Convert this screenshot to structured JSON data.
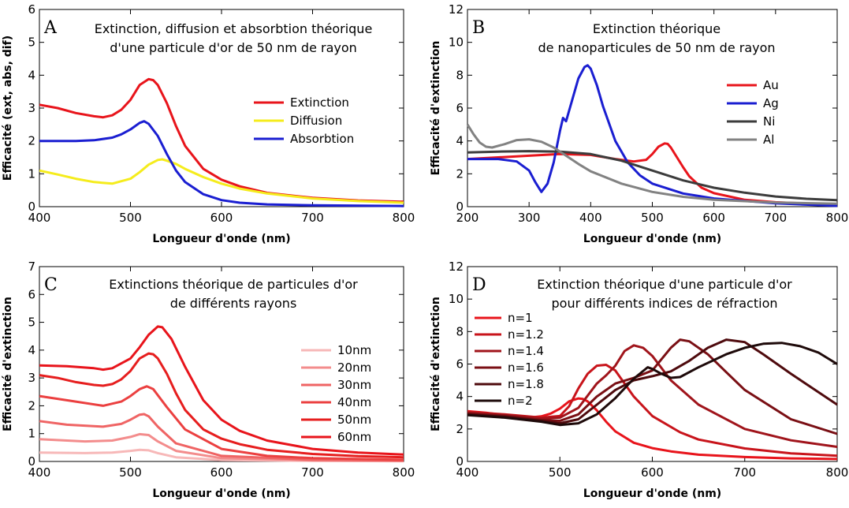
{
  "chart_data": [
    {
      "type": "line",
      "panel": "A",
      "title": [
        "Extinction, diffusion et absorbtion théorique",
        "d'une particule d'or de 50 nm de rayon"
      ],
      "xlabel": "Longueur d'onde (nm)",
      "ylabel": "Efficacité (ext, abs, dif)",
      "xlim": [
        400,
        800
      ],
      "ylim": [
        0,
        6
      ],
      "xticks": [
        400,
        500,
        600,
        700,
        800
      ],
      "yticks": [
        0,
        1,
        2,
        3,
        4,
        5,
        6
      ],
      "legend_position": "right",
      "series": [
        {
          "name": "Extinction",
          "color": "#e8141b",
          "x": [
            400,
            420,
            440,
            460,
            470,
            480,
            490,
            500,
            510,
            520,
            525,
            530,
            540,
            550,
            560,
            580,
            600,
            620,
            650,
            700,
            750,
            800
          ],
          "y": [
            3.1,
            3.0,
            2.85,
            2.75,
            2.72,
            2.78,
            2.95,
            3.25,
            3.7,
            3.88,
            3.85,
            3.7,
            3.15,
            2.45,
            1.85,
            1.15,
            0.82,
            0.62,
            0.42,
            0.27,
            0.19,
            0.15
          ]
        },
        {
          "name": "Diffusion",
          "color": "#f5ec1c",
          "x": [
            400,
            420,
            440,
            460,
            480,
            500,
            510,
            520,
            530,
            535,
            540,
            550,
            560,
            580,
            600,
            620,
            650,
            700,
            750,
            800
          ],
          "y": [
            1.1,
            0.98,
            0.85,
            0.75,
            0.7,
            0.85,
            1.05,
            1.28,
            1.42,
            1.44,
            1.4,
            1.3,
            1.15,
            0.9,
            0.7,
            0.55,
            0.4,
            0.25,
            0.17,
            0.12
          ]
        },
        {
          "name": "Absorbtion",
          "color": "#1a1ed1",
          "x": [
            400,
            420,
            440,
            460,
            480,
            490,
            500,
            510,
            515,
            520,
            530,
            540,
            550,
            560,
            580,
            600,
            620,
            650,
            700,
            800
          ],
          "y": [
            2.0,
            2.0,
            2.0,
            2.02,
            2.1,
            2.2,
            2.35,
            2.55,
            2.6,
            2.52,
            2.15,
            1.6,
            1.1,
            0.75,
            0.38,
            0.2,
            0.12,
            0.07,
            0.04,
            0.02
          ]
        }
      ]
    },
    {
      "type": "line",
      "panel": "B",
      "title": [
        "Extinction théorique",
        "de nanoparticules de 50 nm de rayon"
      ],
      "xlabel": "Longueur d'onde (nm)",
      "ylabel": "Efficacité d'extinction",
      "xlim": [
        200,
        800
      ],
      "ylim": [
        0,
        12
      ],
      "xticks": [
        200,
        300,
        400,
        500,
        600,
        700,
        800
      ],
      "yticks": [
        0,
        2,
        4,
        6,
        8,
        10,
        12
      ],
      "legend_position": "right",
      "series": [
        {
          "name": "Au",
          "color": "#e8141b",
          "x": [
            200,
            250,
            300,
            350,
            400,
            440,
            470,
            490,
            500,
            510,
            520,
            525,
            530,
            540,
            550,
            560,
            580,
            600,
            650,
            700,
            750,
            800
          ],
          "y": [
            2.9,
            3.0,
            3.1,
            3.2,
            3.15,
            2.9,
            2.75,
            2.85,
            3.2,
            3.65,
            3.85,
            3.82,
            3.6,
            3.0,
            2.4,
            1.85,
            1.15,
            0.82,
            0.42,
            0.27,
            0.19,
            0.15
          ]
        },
        {
          "name": "Ag",
          "color": "#1a1ed1",
          "x": [
            200,
            250,
            280,
            300,
            310,
            320,
            330,
            340,
            350,
            355,
            360,
            370,
            380,
            390,
            395,
            400,
            410,
            420,
            440,
            460,
            480,
            500,
            550,
            600,
            700,
            800
          ],
          "y": [
            2.9,
            2.9,
            2.75,
            2.2,
            1.5,
            0.9,
            1.4,
            2.7,
            4.6,
            5.4,
            5.2,
            6.5,
            7.8,
            8.5,
            8.6,
            8.4,
            7.4,
            6.1,
            4.0,
            2.7,
            1.9,
            1.4,
            0.8,
            0.5,
            0.2,
            0.05
          ]
        },
        {
          "name": "Ni",
          "color": "#3c3c3c",
          "x": [
            200,
            250,
            300,
            350,
            400,
            450,
            500,
            550,
            600,
            650,
            700,
            750,
            800
          ],
          "y": [
            3.3,
            3.35,
            3.38,
            3.35,
            3.2,
            2.8,
            2.2,
            1.6,
            1.15,
            0.85,
            0.62,
            0.48,
            0.4
          ]
        },
        {
          "name": "Al",
          "color": "#828282",
          "x": [
            200,
            210,
            220,
            230,
            240,
            260,
            280,
            300,
            320,
            340,
            360,
            380,
            400,
            450,
            500,
            550,
            600,
            700,
            800
          ],
          "y": [
            5.0,
            4.4,
            3.9,
            3.65,
            3.6,
            3.8,
            4.05,
            4.1,
            3.95,
            3.6,
            3.1,
            2.6,
            2.15,
            1.4,
            0.9,
            0.6,
            0.42,
            0.25,
            0.18
          ]
        }
      ]
    },
    {
      "type": "line",
      "panel": "C",
      "title": [
        "Extinctions théorique de particules d'or",
        "de différents rayons"
      ],
      "xlabel": "Longueur d'onde (nm)",
      "ylabel": "Efficacité d'extinction",
      "xlim": [
        400,
        800
      ],
      "ylim": [
        0,
        7
      ],
      "xticks": [
        400,
        500,
        600,
        700,
        800
      ],
      "yticks": [
        0,
        1,
        2,
        3,
        4,
        5,
        6,
        7
      ],
      "legend_position": "right",
      "series": [
        {
          "name": "10nm",
          "color": "#f7b8b8",
          "x": [
            400,
            450,
            480,
            500,
            510,
            520,
            530,
            550,
            600,
            700,
            800
          ],
          "y": [
            0.32,
            0.3,
            0.32,
            0.38,
            0.42,
            0.4,
            0.3,
            0.15,
            0.05,
            0.02,
            0.01
          ]
        },
        {
          "name": "20nm",
          "color": "#f38c8c",
          "x": [
            400,
            450,
            480,
            500,
            510,
            520,
            530,
            550,
            600,
            700,
            800
          ],
          "y": [
            0.8,
            0.72,
            0.75,
            0.88,
            0.98,
            0.95,
            0.72,
            0.38,
            0.12,
            0.04,
            0.02
          ]
        },
        {
          "name": "30nm",
          "color": "#ef6464",
          "x": [
            400,
            430,
            470,
            490,
            500,
            510,
            515,
            520,
            530,
            550,
            600,
            700,
            800
          ],
          "y": [
            1.45,
            1.32,
            1.25,
            1.35,
            1.5,
            1.68,
            1.7,
            1.62,
            1.25,
            0.65,
            0.2,
            0.06,
            0.03
          ]
        },
        {
          "name": "40nm",
          "color": "#eb4040",
          "x": [
            400,
            430,
            470,
            490,
            500,
            510,
            518,
            525,
            540,
            560,
            600,
            650,
            700,
            800
          ],
          "y": [
            2.35,
            2.2,
            2.0,
            2.15,
            2.35,
            2.6,
            2.7,
            2.6,
            1.95,
            1.15,
            0.45,
            0.2,
            0.12,
            0.06
          ]
        },
        {
          "name": "50nm",
          "color": "#e61e1e",
          "x": [
            400,
            420,
            440,
            460,
            470,
            480,
            490,
            500,
            510,
            520,
            525,
            530,
            540,
            550,
            560,
            580,
            600,
            620,
            650,
            700,
            750,
            800
          ],
          "y": [
            3.1,
            3.0,
            2.85,
            2.75,
            2.72,
            2.78,
            2.95,
            3.25,
            3.7,
            3.88,
            3.85,
            3.7,
            3.15,
            2.45,
            1.85,
            1.15,
            0.82,
            0.62,
            0.42,
            0.27,
            0.19,
            0.15
          ]
        },
        {
          "name": "60nm",
          "color": "#e8141b",
          "x": [
            400,
            430,
            460,
            470,
            480,
            500,
            510,
            520,
            530,
            535,
            545,
            560,
            580,
            600,
            620,
            650,
            700,
            750,
            800
          ],
          "y": [
            3.45,
            3.42,
            3.35,
            3.3,
            3.35,
            3.7,
            4.1,
            4.55,
            4.85,
            4.82,
            4.4,
            3.4,
            2.2,
            1.5,
            1.1,
            0.75,
            0.45,
            0.32,
            0.25
          ]
        }
      ]
    },
    {
      "type": "line",
      "panel": "D",
      "title": [
        "Extinction théorique d'une particule d'or",
        "pour différents indices de réfraction"
      ],
      "xlabel": "Longueur d'onde (nm)",
      "ylabel": "Efficacité d'extinction",
      "xlim": [
        400,
        800
      ],
      "ylim": [
        0,
        12
      ],
      "xticks": [
        400,
        500,
        600,
        700,
        800
      ],
      "yticks": [
        0,
        2,
        4,
        6,
        8,
        10,
        12
      ],
      "legend_position": "top-left",
      "series": [
        {
          "name": "n=1",
          "color": "#e8141b",
          "x": [
            400,
            420,
            440,
            460,
            470,
            480,
            490,
            500,
            510,
            520,
            525,
            530,
            540,
            550,
            560,
            580,
            600,
            620,
            650,
            700,
            750,
            800
          ],
          "y": [
            3.1,
            3.0,
            2.85,
            2.75,
            2.72,
            2.78,
            2.95,
            3.25,
            3.7,
            3.88,
            3.85,
            3.7,
            3.15,
            2.45,
            1.85,
            1.15,
            0.82,
            0.62,
            0.42,
            0.27,
            0.19,
            0.15
          ]
        },
        {
          "name": "n=1.2",
          "color": "#c8141b",
          "x": [
            400,
            440,
            480,
            500,
            510,
            520,
            530,
            540,
            550,
            560,
            570,
            580,
            600,
            630,
            650,
            700,
            750,
            800
          ],
          "y": [
            3.05,
            2.9,
            2.7,
            2.8,
            3.4,
            4.5,
            5.4,
            5.9,
            5.95,
            5.6,
            4.8,
            4.0,
            2.8,
            1.8,
            1.35,
            0.8,
            0.5,
            0.35
          ]
        },
        {
          "name": "n=1.4",
          "color": "#a0141b",
          "x": [
            400,
            440,
            480,
            500,
            520,
            540,
            550,
            560,
            570,
            580,
            590,
            600,
            620,
            650,
            700,
            750,
            800
          ],
          "y": [
            3.0,
            2.85,
            2.65,
            2.7,
            3.3,
            4.8,
            5.3,
            5.9,
            6.8,
            7.15,
            7.0,
            6.5,
            5.0,
            3.5,
            2.0,
            1.3,
            0.9
          ]
        },
        {
          "name": "n=1.6",
          "color": "#7a0f14",
          "x": [
            400,
            440,
            480,
            500,
            520,
            540,
            560,
            580,
            600,
            610,
            620,
            630,
            640,
            660,
            680,
            700,
            750,
            800
          ],
          "y": [
            2.95,
            2.8,
            2.55,
            2.5,
            2.9,
            4.0,
            4.8,
            5.15,
            5.6,
            6.3,
            7.0,
            7.5,
            7.4,
            6.6,
            5.5,
            4.4,
            2.6,
            1.7
          ]
        },
        {
          "name": "n=1.8",
          "color": "#4e0a0d",
          "x": [
            400,
            440,
            480,
            500,
            520,
            540,
            560,
            580,
            600,
            620,
            640,
            660,
            680,
            700,
            720,
            750,
            800
          ],
          "y": [
            2.9,
            2.75,
            2.5,
            2.35,
            2.6,
            3.5,
            4.4,
            5.0,
            5.25,
            5.55,
            6.2,
            7.0,
            7.5,
            7.35,
            6.6,
            5.4,
            3.5
          ]
        },
        {
          "name": "n=2",
          "color": "#1e0a0a",
          "x": [
            400,
            440,
            480,
            500,
            520,
            540,
            560,
            580,
            595,
            600,
            610,
            620,
            630,
            650,
            680,
            700,
            720,
            740,
            760,
            780,
            800
          ],
          "y": [
            2.85,
            2.7,
            2.45,
            2.25,
            2.35,
            2.9,
            3.9,
            5.1,
            5.8,
            5.7,
            5.4,
            5.15,
            5.2,
            5.8,
            6.6,
            7.0,
            7.25,
            7.3,
            7.1,
            6.7,
            6.0
          ]
        }
      ]
    }
  ]
}
